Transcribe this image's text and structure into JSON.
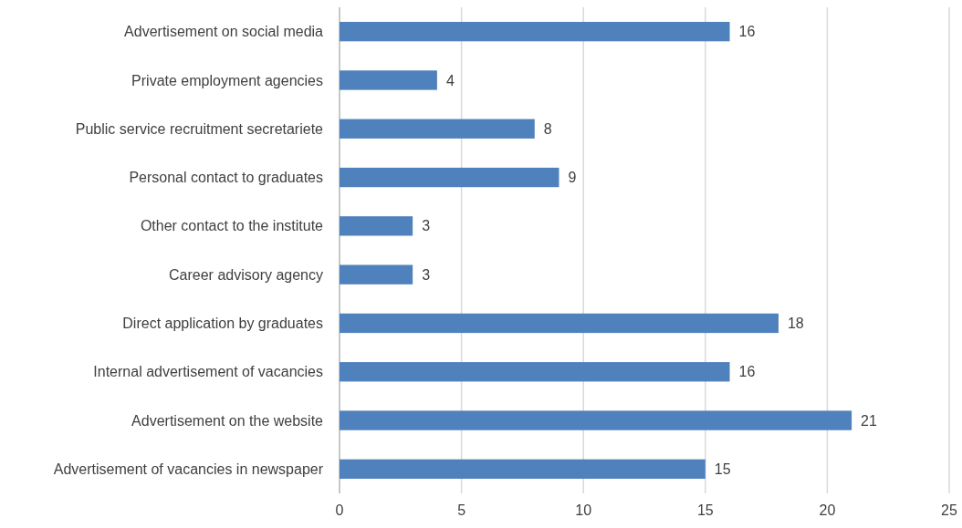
{
  "chart_data": {
    "type": "bar",
    "orientation": "horizontal",
    "categories": [
      "Advertisement on social media",
      "Private employment agencies",
      "Public service recruitment secretariete",
      "Personal contact to graduates",
      "Other contact to the institute",
      "Career advisory agency",
      "Direct application by graduates",
      "Internal advertisement of vacancies",
      "Advertisement on the website",
      "Advertisement of vacancies in newspaper"
    ],
    "values": [
      16,
      4,
      8,
      9,
      3,
      3,
      18,
      16,
      21,
      15
    ],
    "color": "#4f81bd",
    "xlim": [
      0,
      25
    ],
    "xticks": [
      0,
      5,
      10,
      15,
      20,
      25
    ],
    "grid": "x",
    "data_labels": true
  }
}
